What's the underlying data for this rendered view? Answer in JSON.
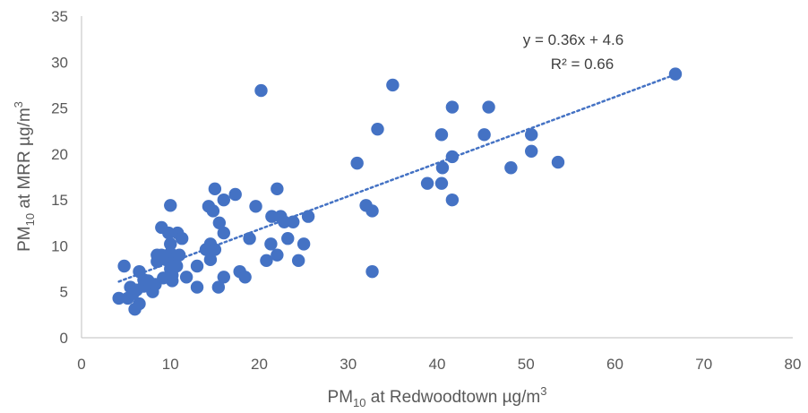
{
  "chart_data": {
    "type": "scatter",
    "xlabel": {
      "main": "PM",
      "sub": "10",
      "rest": " at Redwoodtown  µg/m",
      "sup": "3"
    },
    "ylabel": {
      "main": "PM",
      "sub": "10",
      "rest": " at MRR  µg/m",
      "sup": "3"
    },
    "xlim": [
      0,
      80
    ],
    "ylim": [
      0,
      35
    ],
    "x_ticks": [
      "0",
      "10",
      "20",
      "30",
      "40",
      "50",
      "60",
      "70",
      "80"
    ],
    "y_ticks": [
      "0",
      "5",
      "10",
      "15",
      "20",
      "25",
      "30",
      "35"
    ],
    "grid": false,
    "marker_color": "#4472C4",
    "trendline": {
      "slope": 0.36,
      "intercept": 4.6,
      "x_range": [
        4.2,
        66.8
      ],
      "equation": "y = 0.36x + 4.6",
      "r2": "R² = 0.66",
      "style": "dotted"
    },
    "points": [
      [
        4.2,
        4.3
      ],
      [
        4.8,
        7.8
      ],
      [
        5.2,
        4.3
      ],
      [
        5.5,
        5.5
      ],
      [
        5.8,
        4.8
      ],
      [
        6.0,
        3.1
      ],
      [
        6.2,
        5.2
      ],
      [
        6.5,
        3.7
      ],
      [
        6.5,
        7.2
      ],
      [
        7.0,
        6.3
      ],
      [
        7.0,
        5.6
      ],
      [
        7.5,
        6.2
      ],
      [
        8.0,
        5.0
      ],
      [
        8.3,
        5.8
      ],
      [
        8.5,
        9.0
      ],
      [
        8.5,
        8.3
      ],
      [
        9.0,
        12.0
      ],
      [
        9.0,
        9.0
      ],
      [
        9.2,
        6.5
      ],
      [
        9.5,
        8.5
      ],
      [
        9.8,
        11.4
      ],
      [
        10.0,
        14.4
      ],
      [
        10.0,
        10.2
      ],
      [
        10.0,
        9.2
      ],
      [
        10.0,
        7.5
      ],
      [
        10.2,
        6.2
      ],
      [
        10.2,
        6.8
      ],
      [
        10.5,
        8.5
      ],
      [
        10.7,
        7.8
      ],
      [
        10.8,
        11.4
      ],
      [
        11.0,
        9.0
      ],
      [
        11.3,
        10.8
      ],
      [
        11.8,
        6.6
      ],
      [
        13.0,
        5.5
      ],
      [
        13.0,
        7.8
      ],
      [
        14.0,
        9.6
      ],
      [
        14.3,
        14.3
      ],
      [
        14.5,
        8.5
      ],
      [
        14.5,
        10.2
      ],
      [
        14.8,
        13.8
      ],
      [
        15.0,
        16.2
      ],
      [
        15.0,
        9.6
      ],
      [
        15.4,
        5.5
      ],
      [
        15.5,
        12.5
      ],
      [
        16.0,
        15.0
      ],
      [
        16.0,
        11.4
      ],
      [
        16.0,
        6.6
      ],
      [
        17.3,
        15.6
      ],
      [
        17.8,
        7.2
      ],
      [
        18.4,
        6.6
      ],
      [
        18.9,
        10.8
      ],
      [
        19.6,
        14.3
      ],
      [
        20.2,
        26.9
      ],
      [
        20.8,
        8.4
      ],
      [
        21.3,
        10.2
      ],
      [
        21.4,
        13.2
      ],
      [
        22.0,
        9.0
      ],
      [
        22.0,
        16.2
      ],
      [
        22.4,
        13.2
      ],
      [
        22.8,
        12.6
      ],
      [
        23.2,
        10.8
      ],
      [
        23.8,
        12.6
      ],
      [
        24.4,
        8.4
      ],
      [
        25.0,
        10.2
      ],
      [
        25.5,
        13.2
      ],
      [
        31.0,
        19.0
      ],
      [
        32.0,
        14.4
      ],
      [
        32.7,
        13.8
      ],
      [
        32.7,
        7.2
      ],
      [
        33.3,
        22.7
      ],
      [
        35.0,
        27.5
      ],
      [
        38.9,
        16.8
      ],
      [
        40.5,
        16.8
      ],
      [
        40.5,
        22.1
      ],
      [
        40.6,
        18.5
      ],
      [
        41.7,
        25.1
      ],
      [
        41.7,
        19.7
      ],
      [
        41.7,
        15.0
      ],
      [
        45.3,
        22.1
      ],
      [
        45.8,
        25.1
      ],
      [
        48.3,
        18.5
      ],
      [
        50.6,
        22.1
      ],
      [
        50.6,
        20.3
      ],
      [
        53.6,
        19.1
      ],
      [
        66.8,
        28.7
      ]
    ]
  }
}
